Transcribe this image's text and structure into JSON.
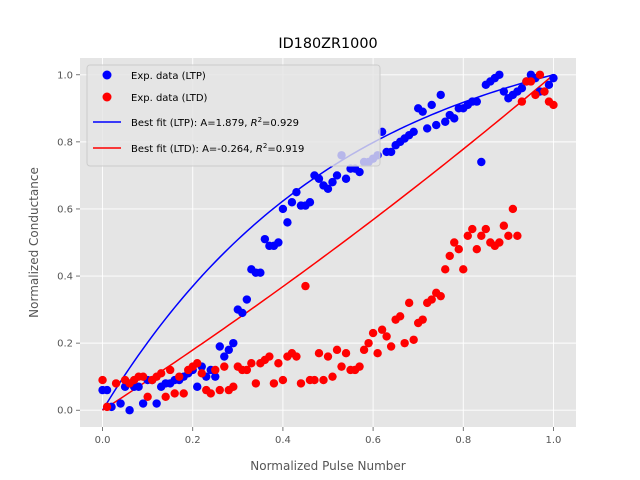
{
  "chart_data": {
    "type": "scatter",
    "title": "ID180ZR1000",
    "xlabel": "Normalized Pulse Number",
    "ylabel": "Normalized Conductance",
    "xlim": [
      -0.05,
      1.05
    ],
    "ylim": [
      -0.05,
      1.05
    ],
    "xticks": [
      "0.0",
      "0.2",
      "0.4",
      "0.6",
      "0.8",
      "1.0"
    ],
    "yticks": [
      "0.0",
      "0.2",
      "0.4",
      "0.6",
      "0.8",
      "1.0"
    ],
    "grid": true,
    "legend_position": "top-left",
    "colors": {
      "ltp": "#0000ff",
      "ltd": "#ff0000",
      "background": "#e5e5e5",
      "grid": "#ffffff"
    },
    "series": [
      {
        "name": "Exp. data (LTP)",
        "kind": "scatter",
        "x": [
          0.0,
          0.01,
          0.02,
          0.04,
          0.05,
          0.06,
          0.07,
          0.08,
          0.09,
          0.1,
          0.11,
          0.12,
          0.13,
          0.14,
          0.15,
          0.16,
          0.17,
          0.18,
          0.19,
          0.2,
          0.21,
          0.22,
          0.23,
          0.24,
          0.25,
          0.26,
          0.27,
          0.28,
          0.29,
          0.3,
          0.31,
          0.32,
          0.33,
          0.34,
          0.35,
          0.36,
          0.37,
          0.38,
          0.39,
          0.4,
          0.41,
          0.42,
          0.43,
          0.44,
          0.45,
          0.46,
          0.47,
          0.48,
          0.49,
          0.5,
          0.51,
          0.52,
          0.53,
          0.54,
          0.55,
          0.56,
          0.57,
          0.58,
          0.59,
          0.6,
          0.61,
          0.62,
          0.63,
          0.64,
          0.65,
          0.66,
          0.67,
          0.68,
          0.69,
          0.7,
          0.71,
          0.72,
          0.73,
          0.74,
          0.75,
          0.76,
          0.77,
          0.78,
          0.79,
          0.8,
          0.81,
          0.82,
          0.83,
          0.84,
          0.85,
          0.86,
          0.87,
          0.88,
          0.89,
          0.9,
          0.91,
          0.92,
          0.93,
          0.94,
          0.95,
          0.96,
          0.97,
          0.98,
          0.99,
          1.0
        ],
        "y": [
          0.06,
          0.06,
          0.01,
          0.02,
          0.07,
          0.0,
          0.07,
          0.07,
          0.02,
          0.09,
          0.09,
          0.02,
          0.07,
          0.08,
          0.08,
          0.09,
          0.09,
          0.1,
          0.11,
          0.12,
          0.07,
          0.13,
          0.1,
          0.12,
          0.1,
          0.19,
          0.16,
          0.18,
          0.2,
          0.3,
          0.29,
          0.33,
          0.42,
          0.41,
          0.41,
          0.51,
          0.49,
          0.49,
          0.5,
          0.6,
          0.56,
          0.62,
          0.65,
          0.61,
          0.61,
          0.62,
          0.7,
          0.69,
          0.67,
          0.66,
          0.68,
          0.7,
          0.76,
          0.69,
          0.72,
          0.72,
          0.71,
          0.74,
          0.74,
          0.75,
          0.76,
          0.83,
          0.77,
          0.77,
          0.79,
          0.8,
          0.81,
          0.82,
          0.83,
          0.9,
          0.89,
          0.84,
          0.91,
          0.85,
          0.94,
          0.86,
          0.88,
          0.87,
          0.9,
          0.9,
          0.91,
          0.92,
          0.92,
          0.74,
          0.97,
          0.98,
          0.99,
          1.0,
          0.95,
          0.93,
          0.94,
          0.95,
          0.96,
          0.98,
          1.0,
          0.99,
          0.95,
          0.95,
          0.97,
          0.99
        ]
      },
      {
        "name": "Exp. data (LTD)",
        "kind": "scatter",
        "x": [
          0.0,
          0.01,
          0.03,
          0.05,
          0.06,
          0.07,
          0.08,
          0.09,
          0.1,
          0.11,
          0.12,
          0.13,
          0.14,
          0.15,
          0.16,
          0.17,
          0.18,
          0.19,
          0.2,
          0.21,
          0.22,
          0.23,
          0.24,
          0.25,
          0.26,
          0.27,
          0.28,
          0.29,
          0.3,
          0.31,
          0.32,
          0.33,
          0.34,
          0.35,
          0.36,
          0.37,
          0.38,
          0.39,
          0.4,
          0.41,
          0.42,
          0.43,
          0.44,
          0.45,
          0.46,
          0.47,
          0.48,
          0.49,
          0.5,
          0.51,
          0.52,
          0.53,
          0.54,
          0.55,
          0.56,
          0.57,
          0.58,
          0.59,
          0.6,
          0.61,
          0.62,
          0.63,
          0.64,
          0.65,
          0.66,
          0.67,
          0.68,
          0.69,
          0.7,
          0.71,
          0.72,
          0.73,
          0.74,
          0.75,
          0.76,
          0.77,
          0.78,
          0.79,
          0.8,
          0.81,
          0.82,
          0.83,
          0.84,
          0.85,
          0.86,
          0.87,
          0.88,
          0.89,
          0.9,
          0.91,
          0.92,
          0.93,
          0.94,
          0.95,
          0.96,
          0.97,
          0.98,
          0.99,
          1.0
        ],
        "y": [
          0.09,
          0.01,
          0.08,
          0.09,
          0.08,
          0.09,
          0.1,
          0.1,
          0.04,
          0.09,
          0.1,
          0.11,
          0.04,
          0.12,
          0.05,
          0.1,
          0.05,
          0.12,
          0.13,
          0.14,
          0.11,
          0.06,
          0.05,
          0.12,
          0.06,
          0.13,
          0.06,
          0.07,
          0.13,
          0.12,
          0.12,
          0.14,
          0.08,
          0.14,
          0.15,
          0.16,
          0.08,
          0.14,
          0.09,
          0.16,
          0.17,
          0.16,
          0.08,
          0.37,
          0.09,
          0.09,
          0.17,
          0.09,
          0.16,
          0.1,
          0.18,
          0.13,
          0.17,
          0.12,
          0.12,
          0.13,
          0.18,
          0.2,
          0.23,
          0.17,
          0.24,
          0.22,
          0.19,
          0.27,
          0.28,
          0.2,
          0.32,
          0.21,
          0.26,
          0.27,
          0.32,
          0.33,
          0.35,
          0.34,
          0.42,
          0.46,
          0.5,
          0.48,
          0.42,
          0.52,
          0.54,
          0.48,
          0.52,
          0.54,
          0.5,
          0.49,
          0.5,
          0.55,
          0.52,
          0.6,
          0.52,
          0.92,
          0.98,
          0.98,
          0.94,
          1.0,
          0.95,
          0.92,
          0.91
        ]
      },
      {
        "name": "Best fit (LTP): A=1.879, R²=0.929",
        "kind": "line",
        "fit": {
          "A": 1.879,
          "R2": 0.929
        }
      },
      {
        "name": "Best fit (LTD): A=-0.264, R²=0.919",
        "kind": "line",
        "fit": {
          "A": -0.264,
          "R2": 0.919
        }
      }
    ]
  },
  "legend": {
    "items": [
      {
        "text": "Exp. data (LTP)"
      },
      {
        "text": "Exp. data (LTD)"
      },
      {
        "text_prefix": "Best fit (LTP): A=1.879, ",
        "r2_symbol": "R",
        "r2_sup": "2",
        "text_suffix": "=0.929"
      },
      {
        "text_prefix": "Best fit (LTD): A=-0.264, ",
        "r2_symbol": "R",
        "r2_sup": "2",
        "text_suffix": "=0.919"
      }
    ]
  }
}
